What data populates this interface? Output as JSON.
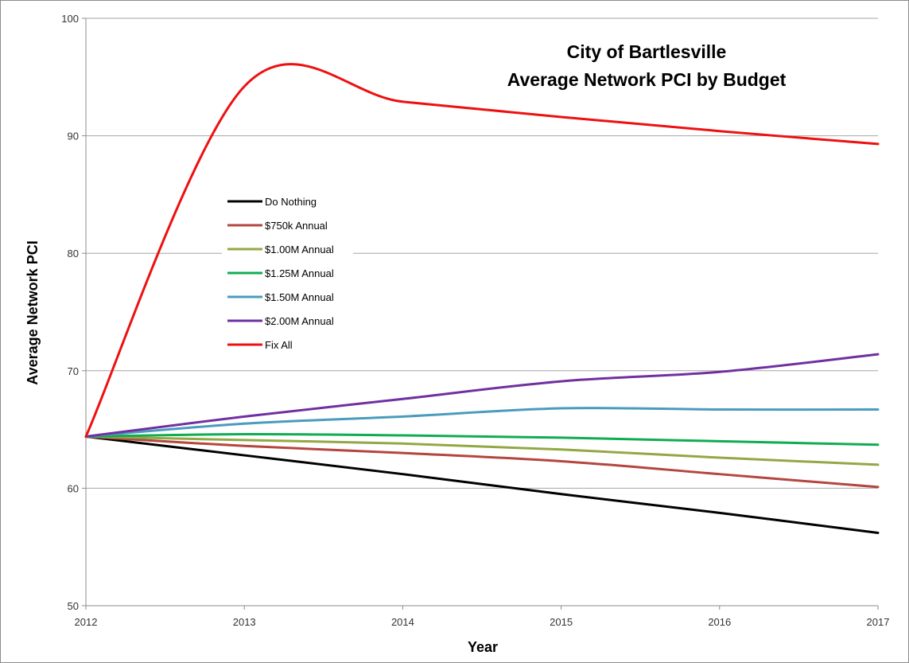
{
  "chart_data": {
    "type": "line",
    "title": "City of Bartlesville",
    "subtitle": "Average Network PCI by Budget",
    "xlabel": "Year",
    "ylabel": "Average Network PCI",
    "x": [
      2012,
      2013,
      2014,
      2015,
      2016,
      2017
    ],
    "xlim": [
      2012,
      2017
    ],
    "ylim": [
      50,
      100
    ],
    "yticks": [
      50,
      60,
      70,
      80,
      90,
      100
    ],
    "grid": true,
    "legend_position": "center-left",
    "series": [
      {
        "name": "Do Nothing",
        "color": "#000000",
        "values": [
          64.4,
          62.8,
          61.2,
          59.5,
          57.9,
          56.2
        ]
      },
      {
        "name": "$750k Annual",
        "color": "#b5453f",
        "values": [
          64.4,
          63.6,
          63.0,
          62.3,
          61.2,
          60.1
        ]
      },
      {
        "name": "$1.00M Annual",
        "color": "#93a844",
        "values": [
          64.4,
          64.1,
          63.8,
          63.3,
          62.6,
          62.0
        ]
      },
      {
        "name": "$1.25M Annual",
        "color": "#10ac52",
        "values": [
          64.4,
          64.6,
          64.5,
          64.3,
          64.0,
          63.7
        ]
      },
      {
        "name": "$1.50M Annual",
        "color": "#4a9bbd",
        "values": [
          64.4,
          65.5,
          66.1,
          66.8,
          66.7,
          66.7
        ]
      },
      {
        "name": "$2.00M Annual",
        "color": "#7030a0",
        "values": [
          64.4,
          66.1,
          67.6,
          69.1,
          69.9,
          71.4
        ]
      },
      {
        "name": "Fix All",
        "color": "#ee1010",
        "values": [
          64.4,
          94.2,
          92.9,
          91.6,
          90.4,
          89.3
        ]
      }
    ]
  }
}
